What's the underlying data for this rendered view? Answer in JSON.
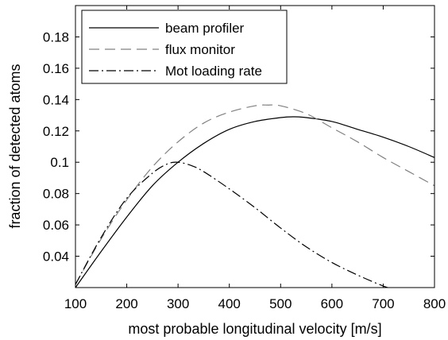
{
  "chart_data": {
    "type": "line",
    "title": "",
    "xlabel": "most probable longitudinal velocity [m/s]",
    "ylabel": "fraction of detected atoms",
    "xlim": [
      100,
      800
    ],
    "ylim": [
      0.02,
      0.2
    ],
    "grid": false,
    "legend_position": "top-left",
    "x_ticks": [
      {
        "value": 100,
        "label": "100"
      },
      {
        "value": 200,
        "label": "200"
      },
      {
        "value": 300,
        "label": "300"
      },
      {
        "value": 400,
        "label": "400"
      },
      {
        "value": 500,
        "label": "500"
      },
      {
        "value": 600,
        "label": "600"
      },
      {
        "value": 700,
        "label": "700"
      },
      {
        "value": 800,
        "label": "800"
      }
    ],
    "y_ticks": [
      {
        "value": 0.04,
        "label": "0.04"
      },
      {
        "value": 0.06,
        "label": "0.06"
      },
      {
        "value": 0.08,
        "label": "0.08"
      },
      {
        "value": 0.1,
        "label": "0.1"
      },
      {
        "value": 0.12,
        "label": "0.12"
      },
      {
        "value": 0.14,
        "label": "0.14"
      },
      {
        "value": 0.16,
        "label": "0.16"
      },
      {
        "value": 0.18,
        "label": "0.18"
      }
    ],
    "series": [
      {
        "name": "beam profiler",
        "color": "#000000",
        "dash": "solid",
        "x": [
          100,
          150,
          200,
          250,
          300,
          350,
          400,
          450,
          500,
          525,
          550,
          600,
          650,
          700,
          750,
          800
        ],
        "y": [
          0.02,
          0.043,
          0.065,
          0.085,
          0.1,
          0.112,
          0.121,
          0.126,
          0.1285,
          0.129,
          0.1285,
          0.126,
          0.121,
          0.116,
          0.11,
          0.103
        ]
      },
      {
        "name": "flux monitor",
        "color": "#808080",
        "dash": "dashed",
        "x": [
          100,
          150,
          200,
          250,
          300,
          350,
          400,
          450,
          475,
          500,
          550,
          600,
          650,
          700,
          750,
          800
        ],
        "y": [
          0.022,
          0.051,
          0.076,
          0.097,
          0.113,
          0.125,
          0.132,
          0.136,
          0.1365,
          0.136,
          0.131,
          0.122,
          0.113,
          0.103,
          0.094,
          0.085
        ]
      },
      {
        "name": "Mot loading rate",
        "color": "#000000",
        "dash": "dashdot",
        "x": [
          100,
          150,
          200,
          250,
          280,
          300,
          325,
          350,
          400,
          450,
          500,
          550,
          600,
          650,
          700,
          730
        ],
        "y": [
          0.022,
          0.052,
          0.077,
          0.093,
          0.099,
          0.1,
          0.098,
          0.094,
          0.083,
          0.071,
          0.058,
          0.046,
          0.036,
          0.028,
          0.021,
          0.018
        ]
      }
    ]
  }
}
